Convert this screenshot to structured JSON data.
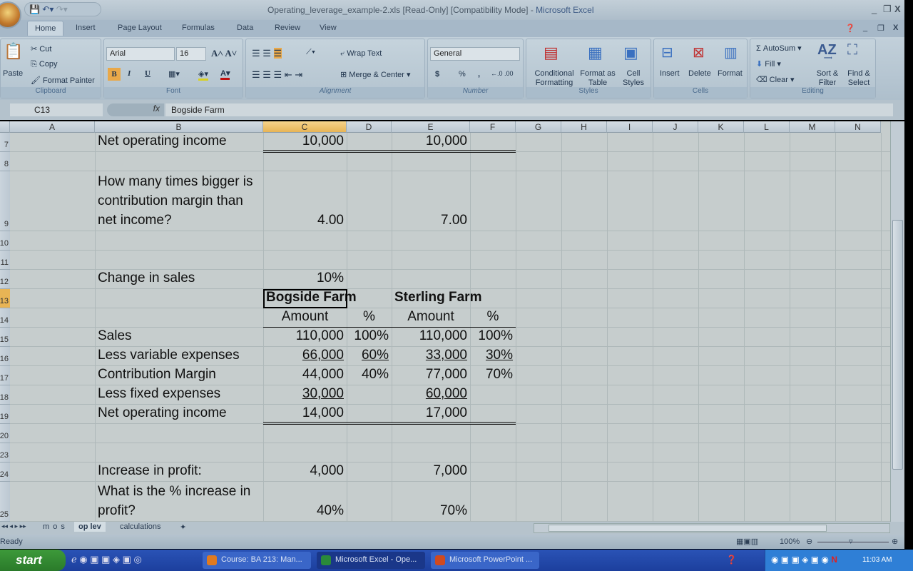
{
  "window": {
    "title": "Operating_leverage_example-2.xls  [Read-Only]  [Compatibility Mode] - ",
    "app": "Microsoft Excel"
  },
  "ribbon_tabs": [
    "Home",
    "Insert",
    "Page Layout",
    "Formulas",
    "Data",
    "Review",
    "View"
  ],
  "clipboard": {
    "paste": "Paste",
    "cut": "Cut",
    "copy": "Copy",
    "format_painter": "Format Painter",
    "label": "Clipboard"
  },
  "font": {
    "name": "Arial",
    "size": "16",
    "label": "Font",
    "bold": "B",
    "italic": "I",
    "underline": "U"
  },
  "alignment": {
    "wrap": "Wrap Text",
    "merge": "Merge & Center",
    "label": "Alignment"
  },
  "number": {
    "format": "General",
    "currency": "$",
    "percent": "%",
    "comma": ",",
    "label": "Number"
  },
  "styles": {
    "conditional": "Conditional Formatting",
    "table": "Format as Table",
    "cell": "Cell Styles",
    "label": "Styles"
  },
  "cells": {
    "insert": "Insert",
    "delete": "Delete",
    "format": "Format",
    "label": "Cells"
  },
  "editing": {
    "autosum": "AutoSum",
    "fill": "Fill",
    "clear": "Clear",
    "sort": "Sort & Filter",
    "find": "Find & Select",
    "label": "Editing"
  },
  "formula_bar": {
    "name_box": "C13",
    "fx": "fx",
    "value": "Bogside Farm"
  },
  "columns": [
    "A",
    "B",
    "C",
    "D",
    "E",
    "F",
    "G",
    "H",
    "I",
    "J",
    "K",
    "L",
    "M",
    "N"
  ],
  "selected_cell": "C13",
  "rows": [
    {
      "n": "7",
      "B": "Net operating income",
      "C": "10,000",
      "E": "10,000"
    },
    {
      "n": "8"
    },
    {
      "n": "9",
      "B": "How many times bigger is contribution margin than net income?",
      "C": "4.00",
      "E": "7.00"
    },
    {
      "n": "10"
    },
    {
      "n": "11"
    },
    {
      "n": "12",
      "B": "Change in sales",
      "C": "10%"
    },
    {
      "n": "13",
      "C": "Bogside Farm",
      "E": "Sterling Farm"
    },
    {
      "n": "14",
      "C": "Amount",
      "D": "%",
      "E": "Amount",
      "F": "%"
    },
    {
      "n": "15",
      "B": "Sales",
      "C": "110,000",
      "D": "100%",
      "E": "110,000",
      "F": "100%"
    },
    {
      "n": "16",
      "B": "Less variable expenses",
      "C": "66,000",
      "D": "60%",
      "E": "33,000",
      "F": "30%"
    },
    {
      "n": "17",
      "B": "Contribution Margin",
      "C": "44,000",
      "D": "40%",
      "E": "77,000",
      "F": "70%"
    },
    {
      "n": "18",
      "B": "Less fixed expenses",
      "C": "30,000",
      "E": "60,000"
    },
    {
      "n": "19",
      "B": "Net operating income",
      "C": "14,000",
      "E": "17,000"
    },
    {
      "n": "20"
    },
    {
      "n": "23"
    },
    {
      "n": "24",
      "B": "Increase in profit:",
      "C": "4,000",
      "E": "7,000"
    },
    {
      "n": "25",
      "B": "What is the % increase in profit?",
      "C": "40%",
      "E": "70%"
    }
  ],
  "sheet_tabs": [
    "m o s",
    "op lev",
    "calculations"
  ],
  "active_sheet": "op lev",
  "status": {
    "text": "Ready",
    "zoom": "100%"
  },
  "taskbar": {
    "start": "start",
    "items": [
      "Course: BA 213: Man...",
      "Microsoft Excel - Ope...",
      "Microsoft PowerPoint ..."
    ],
    "clock": "11:03 AM"
  }
}
